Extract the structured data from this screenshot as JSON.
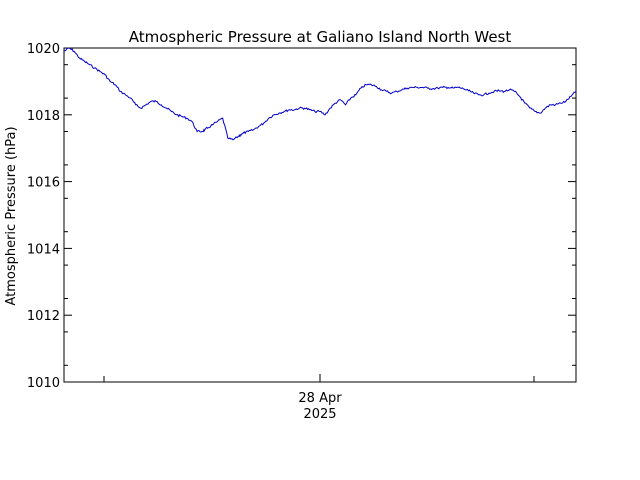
{
  "chart_data": {
    "type": "line",
    "title": "Atmospheric Pressure at Galiano Island North West",
    "ylabel": "Atmospheric Pressure (hPa)",
    "ylim": [
      1010,
      1020
    ],
    "yticks": [
      1010,
      1012,
      1014,
      1016,
      1018,
      1020
    ],
    "x_major_tick": {
      "label_line1": "28 Apr",
      "label_line2": "2025"
    },
    "grid": false,
    "line_color": "#0000cc",
    "series": [
      {
        "x": [
          0.0,
          0.01,
          0.02,
          0.03,
          0.04,
          0.05,
          0.06,
          0.07,
          0.08,
          0.09,
          0.1,
          0.11,
          0.12,
          0.13,
          0.14,
          0.15,
          0.16,
          0.17,
          0.18,
          0.19,
          0.2,
          0.21,
          0.22,
          0.23,
          0.24,
          0.25,
          0.26,
          0.27,
          0.275,
          0.28,
          0.29,
          0.3,
          0.31,
          0.32,
          0.33,
          0.34,
          0.345,
          0.35,
          0.36,
          0.37,
          0.38,
          0.39,
          0.4,
          0.41,
          0.42,
          0.43,
          0.44,
          0.45,
          0.46,
          0.47,
          0.48,
          0.49,
          0.5,
          0.51,
          0.52,
          0.53,
          0.54,
          0.55,
          0.56,
          0.57,
          0.58,
          0.59,
          0.6,
          0.61,
          0.62,
          0.63,
          0.64,
          0.65,
          0.66,
          0.67,
          0.68,
          0.69,
          0.7,
          0.71,
          0.72,
          0.73,
          0.74,
          0.75,
          0.76,
          0.77,
          0.78,
          0.79,
          0.8,
          0.81,
          0.82,
          0.83,
          0.84,
          0.85,
          0.86,
          0.87,
          0.88,
          0.89,
          0.9,
          0.91,
          0.92,
          0.93,
          0.94,
          0.95,
          0.96,
          0.97,
          0.98,
          0.99,
          1.0
        ],
        "values": [
          1019.9,
          1020.0,
          1019.9,
          1019.7,
          1019.6,
          1019.5,
          1019.4,
          1019.3,
          1019.2,
          1019.0,
          1018.9,
          1018.7,
          1018.6,
          1018.5,
          1018.3,
          1018.2,
          1018.3,
          1018.4,
          1018.4,
          1018.3,
          1018.2,
          1018.1,
          1018.0,
          1017.95,
          1017.9,
          1017.8,
          1017.5,
          1017.5,
          1017.55,
          1017.6,
          1017.7,
          1017.8,
          1017.9,
          1017.3,
          1017.25,
          1017.35,
          1017.4,
          1017.45,
          1017.5,
          1017.55,
          1017.65,
          1017.75,
          1017.9,
          1018.0,
          1018.05,
          1018.1,
          1018.15,
          1018.15,
          1018.2,
          1018.2,
          1018.15,
          1018.1,
          1018.1,
          1018.0,
          1018.2,
          1018.35,
          1018.45,
          1018.3,
          1018.5,
          1018.6,
          1018.8,
          1018.9,
          1018.9,
          1018.85,
          1018.75,
          1018.7,
          1018.65,
          1018.7,
          1018.75,
          1018.8,
          1018.82,
          1018.82,
          1018.82,
          1018.8,
          1018.78,
          1018.8,
          1018.82,
          1018.82,
          1018.8,
          1018.82,
          1018.78,
          1018.72,
          1018.65,
          1018.6,
          1018.6,
          1018.65,
          1018.7,
          1018.72,
          1018.7,
          1018.75,
          1018.7,
          1018.55,
          1018.35,
          1018.2,
          1018.1,
          1018.05,
          1018.2,
          1018.3,
          1018.3,
          1018.35,
          1018.4,
          1018.55,
          1018.7
        ]
      }
    ]
  }
}
